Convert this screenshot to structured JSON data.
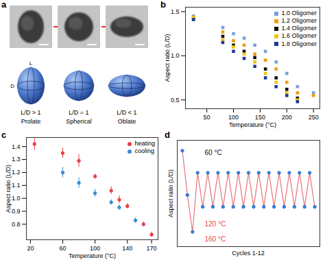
{
  "panel_a": {
    "label": "a",
    "axis_labels": {
      "length": "L",
      "diameter": "D"
    },
    "shapes": [
      {
        "ratio": "L/D > 1",
        "name": "Prolate"
      },
      {
        "ratio": "L/D = 1",
        "name": "Spherical"
      },
      {
        "ratio": "L/D < 1",
        "name": "Oblate"
      }
    ]
  },
  "chart_data": [
    {
      "type": "scatter",
      "title": "b",
      "xlabel": "Temperature (°C)",
      "ylabel": "Aspect ratio (L/D)",
      "x": [
        25,
        80,
        100,
        120,
        140,
        160,
        180,
        200,
        220,
        250
      ],
      "xlim": [
        10,
        262
      ],
      "xticks": [
        50,
        100,
        150,
        200,
        250
      ],
      "ylim": [
        0.4,
        1.55
      ],
      "yticks": [
        0.5,
        {
          "value": 1.0,
          "label": "1.0"
        },
        1.5
      ],
      "marker": "square",
      "legend": "top-right",
      "series": [
        {
          "name": "1.0 Oligomer",
          "color": "#7a9fe0",
          "values": [
            1.45,
            1.32,
            1.25,
            1.2,
            1.12,
            1.05,
            0.93,
            0.8,
            0.65,
            0.58
          ]
        },
        {
          "name": "1.2 Oligomer",
          "color": "#f39c12",
          "values": [
            1.44,
            1.27,
            1.17,
            1.12,
            1.02,
            0.95,
            0.85,
            0.7,
            0.58,
            0.55
          ]
        },
        {
          "name": "1.4 Oligomer",
          "color": "#111111",
          "values": [
            1.42,
            1.22,
            1.12,
            1.05,
            0.98,
            0.85,
            0.75,
            0.62,
            0.52,
            null
          ]
        },
        {
          "name": "1.6 Oligomer",
          "color": "#f1c40f",
          "values": [
            1.43,
            1.18,
            1.1,
            1.02,
            0.93,
            0.8,
            0.7,
            0.58,
            0.5,
            null
          ]
        },
        {
          "name": "1.8 Oligomer",
          "color": "#1f3a93",
          "values": [
            1.41,
            1.15,
            1.05,
            0.97,
            0.88,
            0.75,
            0.65,
            0.55,
            0.48,
            null
          ]
        }
      ]
    },
    {
      "type": "scatter",
      "title": "c",
      "xlabel": "Temperature (°C)",
      "ylabel": "Aspect ratio (L/D)",
      "x": [
        25,
        60,
        80,
        100,
        120,
        130,
        140,
        150,
        160,
        170
      ],
      "xlim": [
        15,
        178
      ],
      "xticks": [
        20,
        60,
        100,
        140,
        170
      ],
      "ylim": [
        0.68,
        1.47
      ],
      "yticks": [
        0.8,
        0.9,
        {
          "value": 1.0,
          "label": "1.0"
        },
        1.1,
        1.2,
        1.3,
        1.4
      ],
      "marker": "circle",
      "legend": "top-right",
      "series": [
        {
          "name": "heating",
          "color": "#e8424a",
          "values": [
            1.42,
            1.35,
            1.29,
            1.17,
            1.06,
            0.99,
            0.94,
            null,
            0.8,
            0.72
          ],
          "errors": [
            0.05,
            0.04,
            0.05,
            0.02,
            0.03,
            0.03,
            0.02,
            null,
            0.02,
            0.02
          ]
        },
        {
          "name": "cooling",
          "color": "#3a8dd6",
          "values": [
            null,
            1.2,
            1.12,
            1.04,
            0.97,
            0.93,
            null,
            0.83,
            null,
            null
          ],
          "errors": [
            null,
            0.04,
            0.04,
            0.03,
            0.02,
            0.02,
            null,
            0.02,
            null,
            null
          ]
        }
      ]
    },
    {
      "type": "line",
      "title": "d",
      "xlabel": "Cycles 1-12",
      "ylabel": "Aspect ratio (L/D)",
      "x": [
        1,
        2,
        3,
        4,
        5,
        6,
        7,
        8,
        9,
        10,
        11,
        12,
        13,
        14,
        15,
        16,
        17,
        18,
        19,
        20,
        21,
        22,
        23,
        24,
        25,
        26,
        27
      ],
      "xlim": [
        0,
        28
      ],
      "xticks": [],
      "ylim": [
        0.7,
        1.42
      ],
      "yticks": [],
      "tick_labels": false,
      "annotations": [
        {
          "text": "60 °C",
          "color": "#111111"
        },
        {
          "text": "120 °C",
          "color": "#e8424a"
        },
        {
          "text": "160 °C",
          "color": "#e8424a"
        }
      ],
      "series": [
        {
          "type": "line",
          "color": "#e8737a",
          "values": [
            1.35,
            1.05,
            0.8,
            1.2,
            0.97,
            1.2,
            0.97,
            1.2,
            0.97,
            1.2,
            0.97,
            1.2,
            0.97,
            1.2,
            0.97,
            1.2,
            0.97,
            1.2,
            0.97,
            1.2,
            0.97,
            1.2,
            0.97,
            1.2,
            0.97,
            1.2,
            0.97
          ]
        },
        {
          "type": "scatter",
          "color": "#3b7dd8",
          "marker": "circle",
          "values": [
            1.35,
            1.05,
            0.8,
            1.2,
            0.97,
            1.2,
            0.97,
            1.2,
            0.97,
            1.2,
            0.97,
            1.2,
            0.97,
            1.2,
            0.97,
            1.2,
            0.97,
            1.2,
            0.97,
            1.2,
            0.97,
            1.2,
            0.97,
            1.2,
            0.97,
            1.2,
            0.97
          ]
        }
      ]
    }
  ]
}
